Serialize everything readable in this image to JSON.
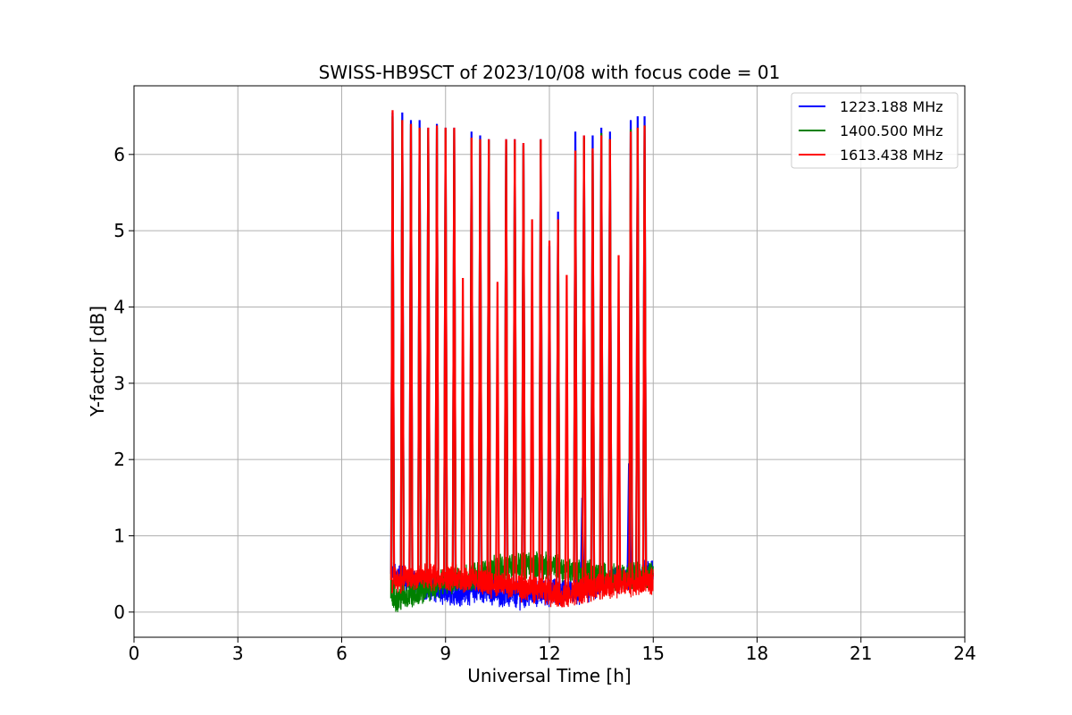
{
  "chart_data": {
    "type": "line",
    "title": "SWISS-HB9SCT of 2023/10/08 with focus code = 01",
    "xlabel": "Universal Time [h]",
    "ylabel": "Y-factor [dB]",
    "xlim": [
      0,
      24
    ],
    "ylim": [
      -0.33,
      6.9
    ],
    "xticks": [
      0,
      3,
      6,
      9,
      12,
      15,
      18,
      21,
      24
    ],
    "yticks": [
      0,
      1,
      2,
      3,
      4,
      5,
      6
    ],
    "grid": true,
    "legend_position": "top-right",
    "data_range_x": [
      7.45,
      15.0
    ],
    "series": [
      {
        "name": "1223.188 MHz",
        "color": "#0000ff",
        "baseline": [
          [
            7.5,
            0.5
          ],
          [
            8.0,
            0.42
          ],
          [
            9.0,
            0.25
          ],
          [
            10.0,
            0.3
          ],
          [
            11.0,
            0.22
          ],
          [
            12.0,
            0.26
          ],
          [
            13.0,
            0.3
          ],
          [
            14.0,
            0.42
          ],
          [
            15.0,
            0.55
          ]
        ],
        "spikes": [
          [
            7.47,
            6.55
          ],
          [
            7.75,
            6.55
          ],
          [
            8.0,
            6.45
          ],
          [
            8.25,
            6.45
          ],
          [
            8.5,
            6.35
          ],
          [
            8.75,
            6.4
          ],
          [
            9.0,
            6.35
          ],
          [
            9.25,
            6.35
          ],
          [
            9.75,
            6.3
          ],
          [
            10.0,
            6.25
          ],
          [
            10.25,
            6.2
          ],
          [
            10.75,
            6.2
          ],
          [
            11.0,
            6.2
          ],
          [
            11.25,
            6.15
          ],
          [
            11.75,
            6.2
          ],
          [
            12.0,
            4.8
          ],
          [
            12.25,
            5.25
          ],
          [
            12.75,
            6.3
          ],
          [
            12.95,
            1.5
          ],
          [
            13.0,
            6.25
          ],
          [
            13.25,
            6.25
          ],
          [
            13.5,
            6.35
          ],
          [
            13.75,
            6.3
          ],
          [
            14.3,
            1.95
          ],
          [
            14.35,
            6.45
          ],
          [
            14.55,
            6.5
          ],
          [
            14.75,
            6.5
          ]
        ]
      },
      {
        "name": "1400.500 MHz",
        "color": "#008000",
        "baseline": [
          [
            7.5,
            0.18
          ],
          [
            8.0,
            0.22
          ],
          [
            9.0,
            0.4
          ],
          [
            10.0,
            0.5
          ],
          [
            11.0,
            0.62
          ],
          [
            12.0,
            0.6
          ],
          [
            13.0,
            0.52
          ],
          [
            14.0,
            0.46
          ],
          [
            15.0,
            0.5
          ]
        ],
        "spikes": [
          [
            7.47,
            6.5
          ],
          [
            7.75,
            6.45
          ],
          [
            8.0,
            6.4
          ],
          [
            8.25,
            6.35
          ],
          [
            8.5,
            6.33
          ],
          [
            8.75,
            6.35
          ],
          [
            9.0,
            6.33
          ],
          [
            9.25,
            6.33
          ],
          [
            9.75,
            6.22
          ],
          [
            10.0,
            6.2
          ],
          [
            10.25,
            6.18
          ],
          [
            10.75,
            6.18
          ],
          [
            11.0,
            6.15
          ],
          [
            11.25,
            6.12
          ],
          [
            11.75,
            6.18
          ],
          [
            12.25,
            5.12
          ],
          [
            12.75,
            6.05
          ],
          [
            13.0,
            6.22
          ],
          [
            13.25,
            6.05
          ],
          [
            13.5,
            6.28
          ],
          [
            13.75,
            6.2
          ],
          [
            14.35,
            6.33
          ],
          [
            14.55,
            6.35
          ],
          [
            14.75,
            6.38
          ]
        ]
      },
      {
        "name": "1613.438 MHz",
        "color": "#ff0000",
        "baseline": [
          [
            7.5,
            0.42
          ],
          [
            8.0,
            0.45
          ],
          [
            9.0,
            0.47
          ],
          [
            10.0,
            0.4
          ],
          [
            11.0,
            0.33
          ],
          [
            12.0,
            0.27
          ],
          [
            12.5,
            0.2
          ],
          [
            13.0,
            0.3
          ],
          [
            14.0,
            0.38
          ],
          [
            15.0,
            0.4
          ]
        ],
        "spikes": [
          [
            7.47,
            6.58
          ],
          [
            7.75,
            6.45
          ],
          [
            8.0,
            6.4
          ],
          [
            8.25,
            6.35
          ],
          [
            8.5,
            6.35
          ],
          [
            8.75,
            6.38
          ],
          [
            9.0,
            6.35
          ],
          [
            9.25,
            6.35
          ],
          [
            9.5,
            4.38
          ],
          [
            9.75,
            6.22
          ],
          [
            10.0,
            6.2
          ],
          [
            10.25,
            6.2
          ],
          [
            10.5,
            4.33
          ],
          [
            10.75,
            6.2
          ],
          [
            11.0,
            6.2
          ],
          [
            11.25,
            6.15
          ],
          [
            11.5,
            5.15
          ],
          [
            11.75,
            6.2
          ],
          [
            12.0,
            4.87
          ],
          [
            12.25,
            5.15
          ],
          [
            12.5,
            4.42
          ],
          [
            12.75,
            6.05
          ],
          [
            13.0,
            6.25
          ],
          [
            13.25,
            6.08
          ],
          [
            13.5,
            6.25
          ],
          [
            13.75,
            6.2
          ],
          [
            14.0,
            4.68
          ],
          [
            14.35,
            6.3
          ],
          [
            14.55,
            6.35
          ],
          [
            14.75,
            6.38
          ]
        ]
      }
    ]
  }
}
